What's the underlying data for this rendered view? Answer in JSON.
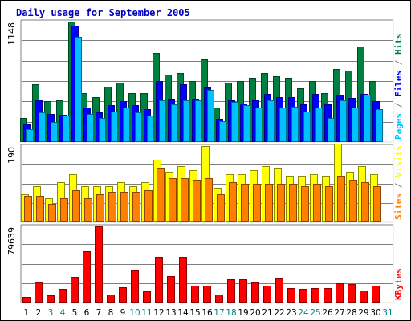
{
  "chart_data": {
    "type": "bar",
    "title": "Daily usage for September 2005",
    "colors": {
      "hits": "#008040",
      "files": "#0000ff",
      "pages": "#00c0ff",
      "visits": "#ffff00",
      "sites": "#ff8000",
      "kbytes": "#ff0000",
      "title": "#0000c0",
      "weekend": "#008080",
      "frame_dark": "#808080",
      "frame_light": "#e0e0e0"
    },
    "categories": [
      "1",
      "2",
      "3",
      "4",
      "5",
      "6",
      "7",
      "8",
      "9",
      "10",
      "11",
      "12",
      "13",
      "14",
      "15",
      "16",
      "17",
      "18",
      "19",
      "20",
      "21",
      "22",
      "23",
      "24",
      "25",
      "26",
      "27",
      "28",
      "29",
      "30",
      "31"
    ],
    "weekend_days": [
      "3",
      "4",
      "10",
      "11",
      "17",
      "18",
      "24",
      "25",
      "31"
    ],
    "panels": [
      {
        "id": "hits-files-pages",
        "max_label": "1148",
        "ylim": [
          0,
          1148
        ],
        "side_labels": [
          {
            "text": "Pages",
            "color_key": "pages"
          },
          {
            "text": " / ",
            "color_key": "frame_dark"
          },
          {
            "text": "Files",
            "color_key": "files"
          },
          {
            "text": " / ",
            "color_key": "frame_dark"
          },
          {
            "text": "Hits",
            "color_key": "hits"
          }
        ],
        "series": [
          {
            "name": "Hits",
            "color_key": "hits",
            "values": [
              230,
              550,
              390,
              400,
              1148,
              470,
              430,
              530,
              570,
              470,
              470,
              850,
              640,
              660,
              580,
              790,
              330,
              570,
              580,
              610,
              660,
              630,
              610,
              510,
              580,
              470,
              700,
              680,
              910,
              580,
              0
            ]
          },
          {
            "name": "Files",
            "color_key": "files",
            "values": [
              170,
              400,
              270,
              260,
              1110,
              330,
              280,
              350,
              390,
              350,
              310,
              580,
              410,
              550,
              410,
              520,
              220,
              400,
              370,
              400,
              460,
              430,
              430,
              360,
              460,
              360,
              450,
              420,
              460,
              390,
              0
            ]
          },
          {
            "name": "Pages",
            "color_key": "pages",
            "values": [
              120,
              280,
              190,
              250,
              1000,
              270,
              230,
              290,
              330,
              280,
              250,
              400,
              360,
              400,
              400,
              500,
              200,
              380,
              350,
              330,
              400,
              330,
              340,
              290,
              330,
              230,
              400,
              330,
              450,
              310,
              0
            ]
          }
        ]
      },
      {
        "id": "visits-sites",
        "max_label": "190",
        "ylim": [
          0,
          190
        ],
        "side_labels": [
          {
            "text": "Sites",
            "color_key": "sites"
          },
          {
            "text": " / ",
            "color_key": "frame_dark"
          },
          {
            "text": "Visits",
            "color_key": "visits"
          }
        ],
        "series": [
          {
            "name": "Visits",
            "color_key": "visits",
            "values": [
              70,
              90,
              60,
              100,
              120,
              90,
              90,
              90,
              100,
              90,
              100,
              155,
              125,
              140,
              130,
              190,
              85,
              120,
              120,
              130,
              140,
              135,
              115,
              115,
              120,
              115,
              195,
              125,
              140,
              120,
              0
            ]
          },
          {
            "name": "Sites",
            "color_key": "sites",
            "values": [
              65,
              65,
              45,
              60,
              80,
              60,
              70,
              75,
              75,
              75,
              80,
              135,
              110,
              110,
              105,
              110,
              70,
              100,
              95,
              95,
              95,
              95,
              95,
              90,
              95,
              90,
              115,
              105,
              100,
              90,
              0
            ]
          }
        ]
      },
      {
        "id": "kbytes",
        "max_label": "79639",
        "ylim": [
          0,
          79639
        ],
        "side_labels": [
          {
            "text": "KBytes",
            "color_key": "kbytes"
          }
        ],
        "series": [
          {
            "name": "KBytes",
            "color_key": "kbytes",
            "values": [
              5500,
              21000,
              7500,
              14500,
              27000,
              54000,
              79639,
              8500,
              16000,
              33500,
              11500,
              47500,
              27800,
              47500,
              18000,
              17800,
              8500,
              24500,
              24200,
              21000,
              18000,
              25500,
              15000,
              14500,
              14800,
              15000,
              20500,
              19000,
              12500,
              18000,
              0
            ]
          }
        ]
      }
    ]
  }
}
